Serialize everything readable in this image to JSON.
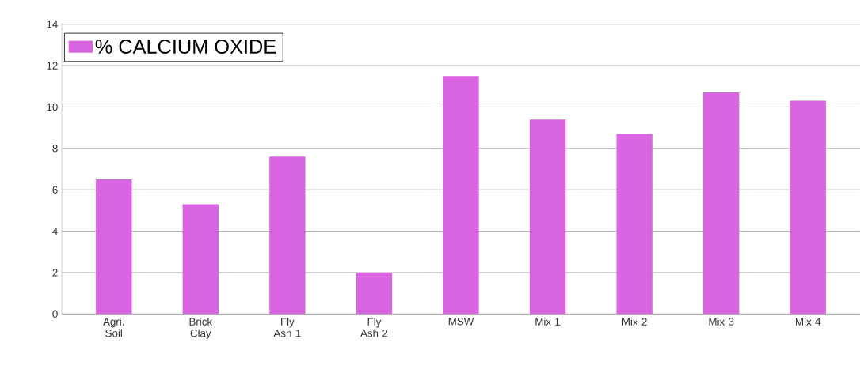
{
  "chart_data": {
    "type": "bar",
    "categories": [
      "Agri. Soil",
      "Brick Clay",
      "Fly Ash 1",
      "Fly Ash 2",
      "MSW",
      "Mix 1",
      "Mix 2",
      "Mix 3",
      "Mix 4"
    ],
    "series": [
      {
        "name": "% CALCIUM OXIDE",
        "color": "#d966e0",
        "values": [
          6.5,
          5.3,
          7.6,
          2.0,
          11.5,
          9.4,
          8.7,
          10.7,
          10.3
        ]
      }
    ],
    "ylim": [
      0,
      14
    ],
    "yticks": [
      0,
      2,
      4,
      6,
      8,
      10,
      12,
      14
    ],
    "grid": "y",
    "legend": "top left"
  }
}
